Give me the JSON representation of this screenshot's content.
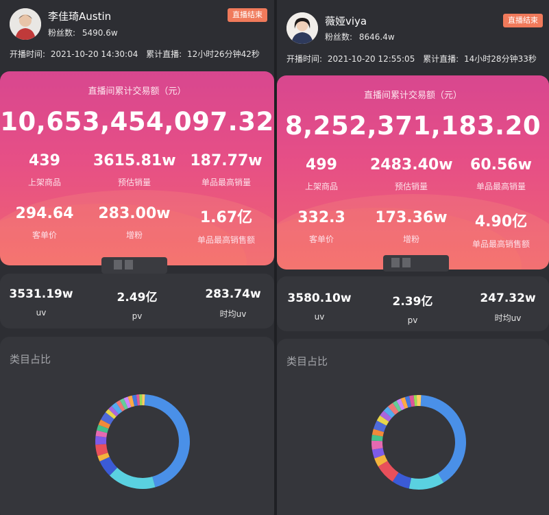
{
  "left": {
    "name": "李佳琦Austin",
    "fans_label": "粉丝数:",
    "fans_value": "5490.6w",
    "badge": "直播结束",
    "start_label": "开播时间:",
    "start_value": "2021-10-20 14:30:04",
    "duration_label": "累计直播:",
    "duration_value": "12小时26分钟42秒",
    "total_caption": "直播间累计交易额（元）",
    "total_value": "10,653,454,097.32",
    "stats": [
      {
        "value": "439",
        "label": "上架商品"
      },
      {
        "value": "3615.81w",
        "label": "预估销量"
      },
      {
        "value": "187.77w",
        "label": "单品最高销量"
      },
      {
        "value": "294.64",
        "label": "客单价"
      },
      {
        "value": "283.00w",
        "label": "增粉"
      },
      {
        "value": "1.67亿",
        "label": "单品最高销售额"
      }
    ],
    "uv": [
      {
        "value": "3531.19w",
        "label": "uv"
      },
      {
        "value": "2.49亿",
        "label": "pv"
      },
      {
        "value": "283.74w",
        "label": "时均uv"
      }
    ],
    "category_title": "类目占比"
  },
  "right": {
    "name": "薇娅viya",
    "fans_label": "粉丝数:",
    "fans_value": "8646.4w",
    "badge": "直播结束",
    "start_label": "开播时间:",
    "start_value": "2021-10-20 12:55:05",
    "duration_label": "累计直播:",
    "duration_value": "14小时28分钟33秒",
    "total_caption": "直播间累计交易额（元）",
    "total_value": "8,252,371,183.20",
    "stats": [
      {
        "value": "499",
        "label": "上架商品"
      },
      {
        "value": "2483.40w",
        "label": "预估销量"
      },
      {
        "value": "60.56w",
        "label": "单品最高销量"
      },
      {
        "value": "332.3",
        "label": "客单价"
      },
      {
        "value": "173.36w",
        "label": "增粉"
      },
      {
        "value": "4.90亿",
        "label": "单品最高销售额"
      }
    ],
    "uv": [
      {
        "value": "3580.10w",
        "label": "uv"
      },
      {
        "value": "2.39亿",
        "label": "pv"
      },
      {
        "value": "247.32w",
        "label": "时均uv"
      }
    ],
    "category_title": "类目占比"
  },
  "colors": {
    "badge": "#f07a5b",
    "hero_top": "#d8478f",
    "hero_bottom": "#f06471",
    "card_bg": "#35363b",
    "donut_main": "#4a90e8",
    "donut_second": "#5ad1e0"
  },
  "donut_left": [
    {
      "color": "#4a90e8",
      "value": 46
    },
    {
      "color": "#5ad1e0",
      "value": 17
    },
    {
      "color": "#3b5bd6",
      "value": 6
    },
    {
      "color": "#f3b33d",
      "value": 2
    },
    {
      "color": "#e8505b",
      "value": 4
    },
    {
      "color": "#7d5be8",
      "value": 3
    },
    {
      "color": "#e56ab1",
      "value": 2
    },
    {
      "color": "#44c08a",
      "value": 2
    },
    {
      "color": "#f08a3a",
      "value": 2
    },
    {
      "color": "#4f6ad8",
      "value": 3
    },
    {
      "color": "#e8d54a",
      "value": 1.5
    },
    {
      "color": "#aa66dd",
      "value": 1.5
    },
    {
      "color": "#55aaee",
      "value": 2
    },
    {
      "color": "#ee7777",
      "value": 1.5
    },
    {
      "color": "#66cc99",
      "value": 1.5
    },
    {
      "color": "#cc88ff",
      "value": 1.5
    },
    {
      "color": "#ffaa44",
      "value": 1.5
    },
    {
      "color": "#4477dd",
      "value": 1.5
    },
    {
      "color": "#dd5599",
      "value": 1
    },
    {
      "color": "#99dd55",
      "value": 1
    },
    {
      "color": "#ffcc66",
      "value": 1
    }
  ],
  "donut_right": [
    {
      "color": "#4a90e8",
      "value": 40
    },
    {
      "color": "#5ad1e0",
      "value": 12
    },
    {
      "color": "#3b5bd6",
      "value": 6
    },
    {
      "color": "#e8505b",
      "value": 7
    },
    {
      "color": "#f3b33d",
      "value": 3
    },
    {
      "color": "#7d5be8",
      "value": 3
    },
    {
      "color": "#e56ab1",
      "value": 3
    },
    {
      "color": "#44c08a",
      "value": 2
    },
    {
      "color": "#f08a3a",
      "value": 2
    },
    {
      "color": "#4f6ad8",
      "value": 3
    },
    {
      "color": "#e8d54a",
      "value": 2
    },
    {
      "color": "#aa66dd",
      "value": 2
    },
    {
      "color": "#55aaee",
      "value": 2
    },
    {
      "color": "#ee7777",
      "value": 2
    },
    {
      "color": "#66cc99",
      "value": 1.5
    },
    {
      "color": "#cc88ff",
      "value": 1.5
    },
    {
      "color": "#ffaa44",
      "value": 1.5
    },
    {
      "color": "#4477dd",
      "value": 1.5
    },
    {
      "color": "#dd5599",
      "value": 1.5
    },
    {
      "color": "#99dd55",
      "value": 1
    },
    {
      "color": "#ffcc66",
      "value": 1.5
    }
  ]
}
